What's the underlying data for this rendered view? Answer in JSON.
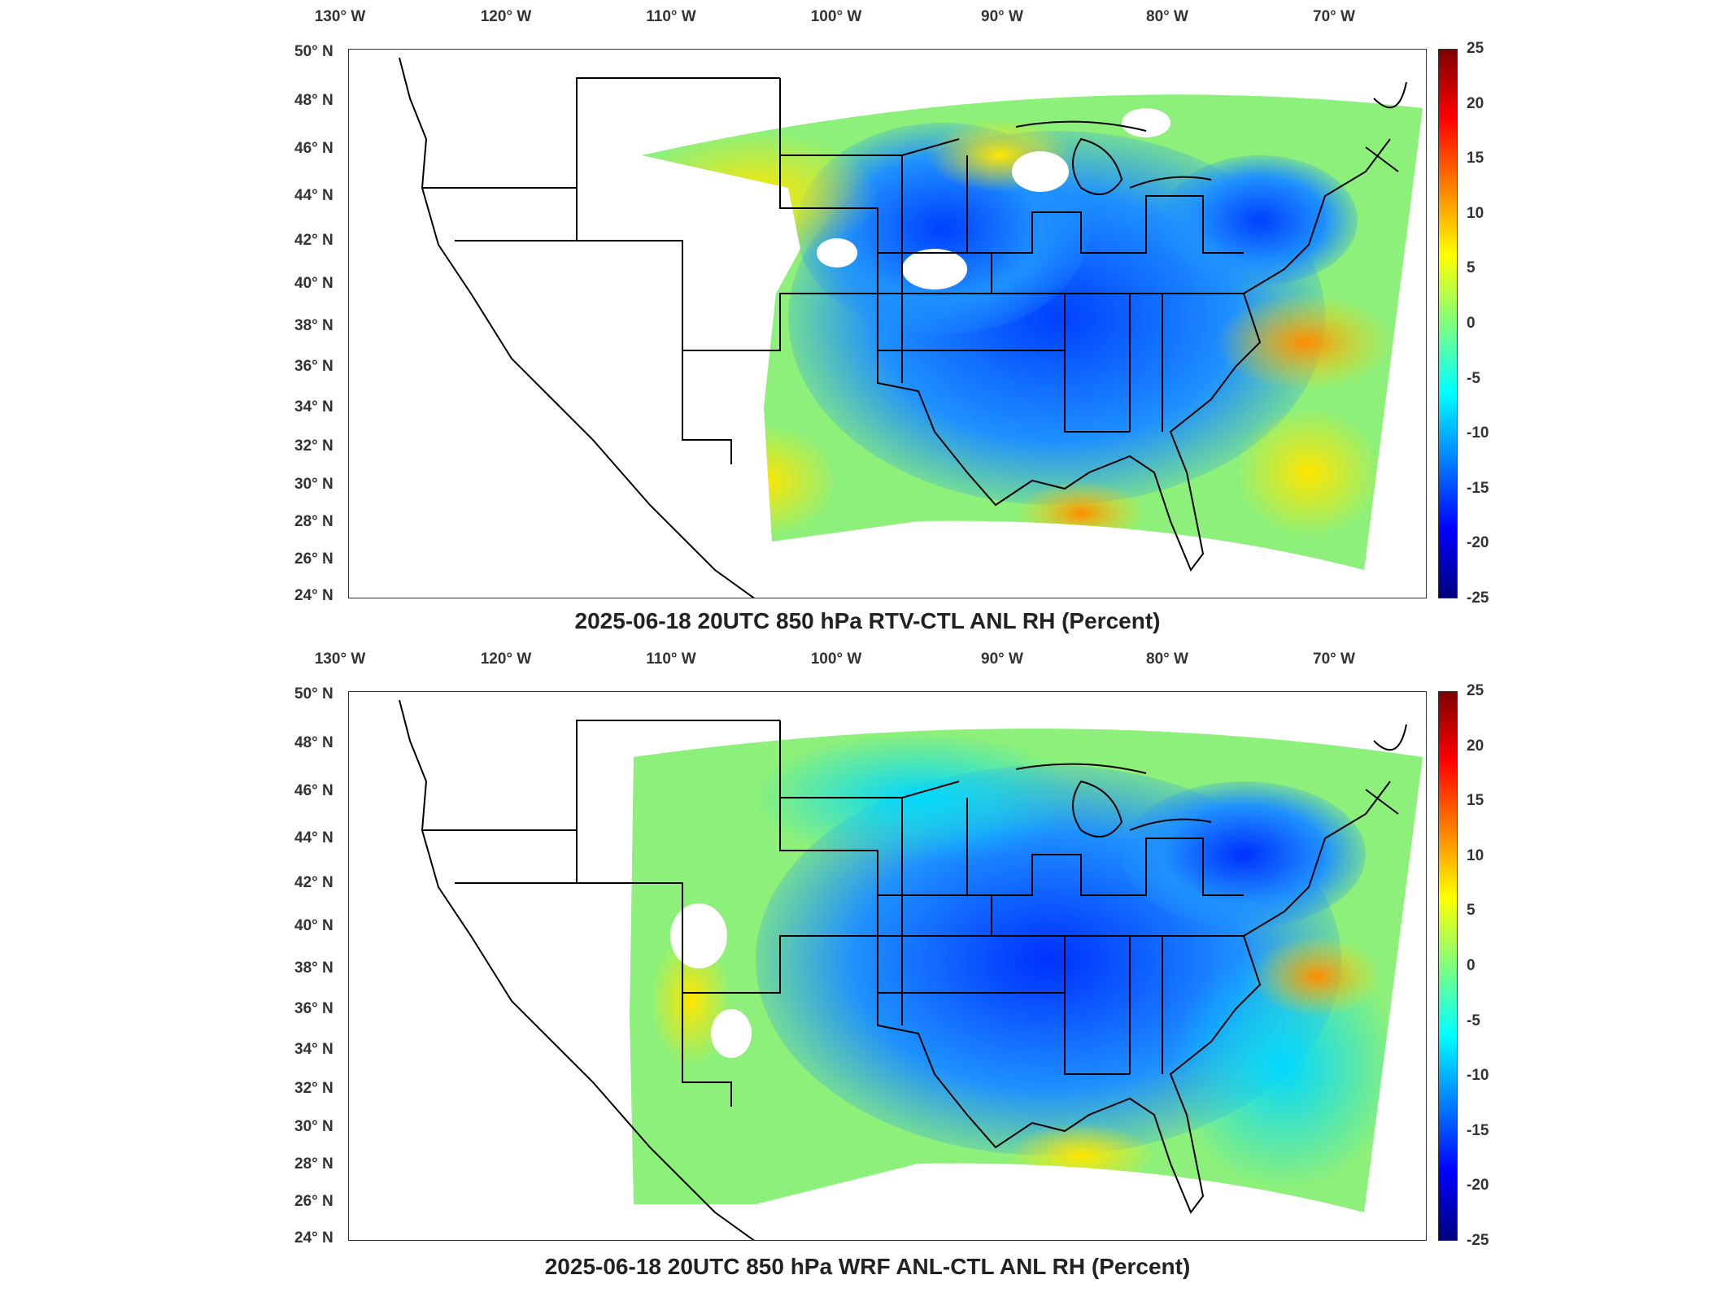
{
  "figure": {
    "lon_ticks": [
      "130° W",
      "120° W",
      "110° W",
      "100° W",
      "90° W",
      "80° W",
      "70° W"
    ],
    "lat_ticks": [
      "50° N",
      "48° N",
      "46° N",
      "44° N",
      "42° N",
      "40° N",
      "38° N",
      "36° N",
      "34° N",
      "32° N",
      "30° N",
      "28° N",
      "26° N",
      "24° N"
    ],
    "colorbar_ticks": [
      "25",
      "20",
      "15",
      "10",
      "5",
      "0",
      "-5",
      "-10",
      "-15",
      "-20",
      "-25"
    ],
    "colormap": [
      "#00007f",
      "#0000ff",
      "#007fff",
      "#00ffff",
      "#7fff7f",
      "#ffff00",
      "#ff7f00",
      "#ff0000",
      "#7f0000"
    ]
  },
  "panels": [
    {
      "title": "2025-06-18 20UTC 850 hPa RTV-CTL ANL RH (Percent)"
    },
    {
      "title": "2025-06-18 20UTC 850 hPa WRF ANL-CTL ANL RH (Percent)"
    }
  ]
}
